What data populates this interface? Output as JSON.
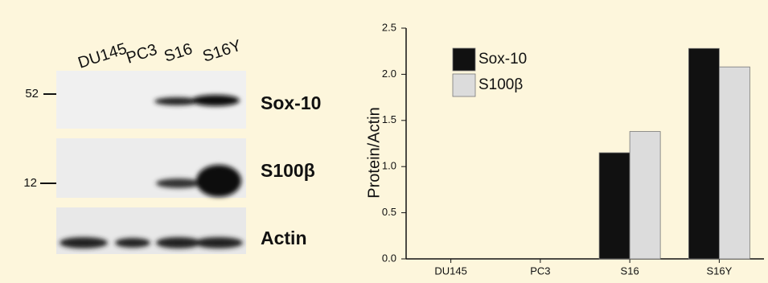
{
  "blot": {
    "lanes": [
      "DU145",
      "PC3",
      "S16",
      "S16Y"
    ],
    "rows": [
      {
        "marker": "52",
        "label": "Sox-10"
      },
      {
        "marker": "12",
        "label": "S100β"
      },
      {
        "label": "Actin"
      }
    ]
  },
  "chart_data": {
    "type": "bar",
    "y_label": "Protein/Actin",
    "categories": [
      "DU145",
      "PC3",
      "S16",
      "S16Y"
    ],
    "series": [
      {
        "name": "Sox-10",
        "color": "#111111",
        "values": [
          0,
          0,
          1.15,
          2.28
        ]
      },
      {
        "name": "S100β",
        "color": "#dcdcdc",
        "values": [
          0,
          0,
          1.38,
          2.08
        ]
      }
    ],
    "ylim": [
      0,
      2.5
    ],
    "yticks": [
      {
        "value": 0,
        "label": "0.0"
      },
      0.5,
      {
        "value": 1,
        "label": "1.0"
      },
      1.5,
      {
        "value": 2,
        "label": "2.0"
      },
      2.5
    ],
    "legend": "upper left"
  }
}
